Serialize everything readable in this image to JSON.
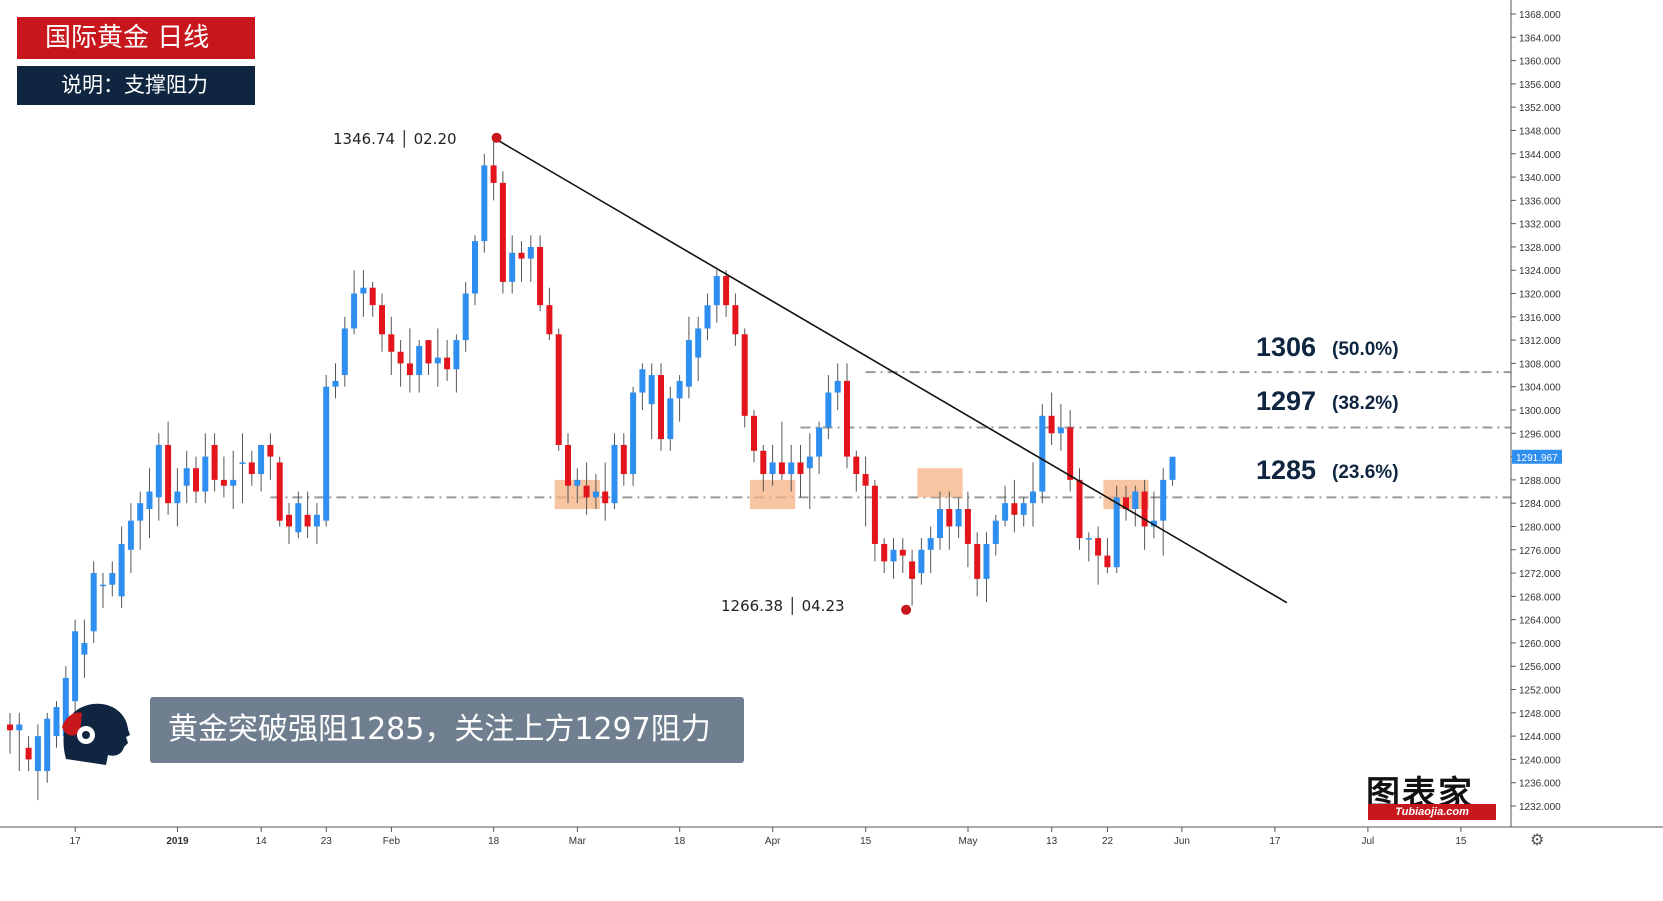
{
  "header": {
    "title": "国际黄金  日线",
    "subtitle": "说明：支撑阻力"
  },
  "banner": {
    "text": "黄金突破强阻1285，关注上方1297阻力"
  },
  "logo": {
    "cn": "图表家",
    "en": "Tubiaojia.com"
  },
  "annotations": {
    "high": "1346.74 │ 02.20",
    "low": "1266.38 │ 04.23"
  },
  "fib_levels": [
    {
      "level": "1306",
      "pct": "(50.0%)",
      "value": 1306.5
    },
    {
      "level": "1297",
      "pct": "(38.2%)",
      "value": 1297.0
    },
    {
      "level": "1285",
      "pct": "(23.6%)",
      "value": 1285.0
    }
  ],
  "current_price": "1291.967",
  "colors": {
    "up": "#2f8ff0",
    "down": "#e3141c",
    "brand_red": "#c8161d",
    "navy": "#0f2540",
    "zone": "#f4b183"
  },
  "chart_data": {
    "type": "candlestick",
    "title": "国际黄金  日线",
    "subtitle": "说明：支撑阻力",
    "ylim": [
      1228,
      1370
    ],
    "y_ticks": [
      "1232.000",
      "1236.000",
      "1240.000",
      "1244.000",
      "1248.000",
      "1252.000",
      "1256.000",
      "1260.000",
      "1264.000",
      "1268.000",
      "1272.000",
      "1276.000",
      "1280.000",
      "1284.000",
      "1288.000",
      "1292.000",
      "1296.000",
      "1300.000",
      "1304.000",
      "1308.000",
      "1312.000",
      "1316.000",
      "1320.000",
      "1324.000",
      "1328.000",
      "1332.000",
      "1336.000",
      "1340.000",
      "1344.000",
      "1348.000",
      "1352.000",
      "1356.000",
      "1360.000",
      "1364.000",
      "1368.000"
    ],
    "x_ticks": [
      {
        "label": "17",
        "bar": 4
      },
      {
        "label": "2019",
        "bar": 15
      },
      {
        "label": "14",
        "bar": 24
      },
      {
        "label": "23",
        "bar": 31
      },
      {
        "label": "Feb",
        "bar": 38
      },
      {
        "label": "18",
        "bar": 49
      },
      {
        "label": "Mar",
        "bar": 58
      },
      {
        "label": "18",
        "bar": 69
      },
      {
        "label": "Apr",
        "bar": 79
      },
      {
        "label": "15",
        "bar": 89
      },
      {
        "label": "May",
        "bar": 100
      },
      {
        "label": "13",
        "bar": 109
      },
      {
        "label": "22",
        "bar": 115
      },
      {
        "label": "Jun",
        "bar": 123
      },
      {
        "label": "17",
        "bar": 133
      },
      {
        "label": "Jul",
        "bar": 143
      },
      {
        "label": "15",
        "bar": 153
      }
    ],
    "candles": [
      [
        1246,
        1248,
        1241,
        1245
      ],
      [
        1245,
        1248,
        1238,
        1246
      ],
      [
        1242,
        1244,
        1238,
        1240
      ],
      [
        1238,
        1246,
        1233,
        1244
      ],
      [
        1238,
        1248,
        1236,
        1247
      ],
      [
        1244,
        1250,
        1242,
        1249
      ],
      [
        1244,
        1256,
        1242,
        1254
      ],
      [
        1250,
        1264,
        1248,
        1262
      ],
      [
        1258,
        1264,
        1254,
        1260
      ],
      [
        1262,
        1274,
        1260,
        1272
      ],
      [
        1270,
        1272,
        1266,
        1270
      ],
      [
        1270,
        1274,
        1268,
        1272
      ],
      [
        1268,
        1280,
        1266,
        1277
      ],
      [
        1276,
        1284,
        1272,
        1281
      ],
      [
        1281,
        1286,
        1276,
        1284
      ],
      [
        1283,
        1290,
        1278,
        1286
      ],
      [
        1285,
        1296,
        1281,
        1294
      ],
      [
        1294,
        1298,
        1282,
        1284
      ],
      [
        1284,
        1290,
        1280,
        1286
      ],
      [
        1287,
        1293,
        1284,
        1290
      ],
      [
        1290,
        1292,
        1284,
        1286
      ],
      [
        1286,
        1296,
        1284,
        1292
      ],
      [
        1294,
        1296,
        1286,
        1288
      ],
      [
        1288,
        1292,
        1285,
        1287
      ],
      [
        1287,
        1293,
        1283,
        1288
      ],
      [
        1291,
        1296,
        1284,
        1291
      ],
      [
        1291,
        1293,
        1287,
        1289
      ],
      [
        1289,
        1294,
        1286,
        1294
      ],
      [
        1294,
        1296,
        1288,
        1292
      ],
      [
        1291,
        1292,
        1280,
        1281
      ],
      [
        1282,
        1284,
        1277,
        1280
      ],
      [
        1279,
        1286,
        1278,
        1284
      ],
      [
        1282,
        1286,
        1278,
        1280
      ],
      [
        1280,
        1284,
        1277,
        1282
      ],
      [
        1281,
        1306,
        1280,
        1304
      ],
      [
        1304,
        1308,
        1302,
        1305
      ],
      [
        1306,
        1316,
        1304,
        1314
      ],
      [
        1314,
        1324,
        1313,
        1320
      ],
      [
        1320,
        1324,
        1316,
        1321
      ],
      [
        1321,
        1322,
        1316,
        1318
      ],
      [
        1318,
        1320,
        1310,
        1313
      ],
      [
        1313,
        1316,
        1306,
        1310
      ],
      [
        1310,
        1312,
        1304,
        1308
      ],
      [
        1308,
        1314,
        1303,
        1306
      ],
      [
        1306,
        1312,
        1303,
        1311
      ],
      [
        1312,
        1312,
        1306,
        1308
      ],
      [
        1308,
        1314,
        1304,
        1309
      ],
      [
        1309,
        1312,
        1305,
        1307
      ],
      [
        1307,
        1313,
        1303,
        1312
      ],
      [
        1312,
        1322,
        1310,
        1320
      ],
      [
        1320,
        1330,
        1318,
        1329
      ],
      [
        1329,
        1344,
        1327,
        1342
      ],
      [
        1342,
        1346.7,
        1336,
        1339
      ],
      [
        1339,
        1341,
        1320,
        1322
      ],
      [
        1322,
        1330,
        1320,
        1327
      ],
      [
        1327,
        1329,
        1322,
        1326
      ],
      [
        1326,
        1330,
        1322,
        1328
      ],
      [
        1328,
        1330,
        1317,
        1318
      ],
      [
        1318,
        1321,
        1312,
        1313
      ],
      [
        1313,
        1314,
        1293,
        1294
      ],
      [
        1294,
        1296,
        1284,
        1287
      ],
      [
        1287,
        1290,
        1284,
        1288
      ],
      [
        1287,
        1291,
        1282,
        1285
      ],
      [
        1285,
        1289,
        1283,
        1286
      ],
      [
        1286,
        1291,
        1281,
        1284
      ],
      [
        1284,
        1296,
        1283,
        1294
      ],
      [
        1294,
        1296,
        1287,
        1289
      ],
      [
        1289,
        1304,
        1287,
        1303
      ],
      [
        1303,
        1308,
        1300,
        1307
      ],
      [
        1301,
        1308,
        1295,
        1306
      ],
      [
        1306,
        1308,
        1293,
        1295
      ],
      [
        1295,
        1304,
        1293,
        1302
      ],
      [
        1302,
        1306,
        1298,
        1305
      ],
      [
        1304,
        1316,
        1302,
        1312
      ],
      [
        1309,
        1316,
        1305,
        1314
      ],
      [
        1314,
        1320,
        1312,
        1318
      ],
      [
        1318,
        1324,
        1315,
        1323
      ],
      [
        1323,
        1324,
        1316,
        1318
      ],
      [
        1318,
        1320,
        1311,
        1313
      ],
      [
        1313,
        1314,
        1297,
        1299
      ],
      [
        1299,
        1300,
        1291,
        1293
      ],
      [
        1293,
        1294,
        1286,
        1289
      ],
      [
        1289,
        1294,
        1287,
        1291
      ],
      [
        1291,
        1298,
        1288,
        1289
      ],
      [
        1289,
        1294,
        1286,
        1291
      ],
      [
        1291,
        1294,
        1285,
        1289
      ],
      [
        1290,
        1296,
        1283,
        1292
      ],
      [
        1292,
        1298,
        1289,
        1297
      ],
      [
        1297,
        1306,
        1295,
        1303
      ],
      [
        1303,
        1308,
        1300,
        1305
      ],
      [
        1305,
        1308,
        1290,
        1292
      ],
      [
        1292,
        1293,
        1286,
        1289
      ],
      [
        1289,
        1292,
        1280,
        1287
      ],
      [
        1287,
        1288,
        1274,
        1277
      ],
      [
        1277,
        1278,
        1272,
        1274
      ],
      [
        1274,
        1278,
        1271,
        1276
      ],
      [
        1276,
        1278,
        1272,
        1275
      ],
      [
        1274,
        1276,
        1266.4,
        1271
      ],
      [
        1272,
        1278,
        1270,
        1276
      ],
      [
        1276,
        1280,
        1272,
        1278
      ],
      [
        1278,
        1286,
        1276,
        1283
      ],
      [
        1283,
        1286,
        1276,
        1280
      ],
      [
        1280,
        1285,
        1278,
        1283
      ],
      [
        1283,
        1286,
        1273,
        1277
      ],
      [
        1277,
        1279,
        1268,
        1271
      ],
      [
        1271,
        1279,
        1267,
        1277
      ],
      [
        1277,
        1282,
        1275,
        1281
      ],
      [
        1281,
        1287,
        1280,
        1284
      ],
      [
        1284,
        1288,
        1279,
        1282
      ],
      [
        1282,
        1285,
        1280,
        1284
      ],
      [
        1284,
        1291,
        1280,
        1286
      ],
      [
        1286,
        1301,
        1284,
        1299
      ],
      [
        1299,
        1303,
        1294,
        1296
      ],
      [
        1296,
        1301,
        1293,
        1297
      ],
      [
        1297,
        1300,
        1286,
        1288
      ],
      [
        1288,
        1290,
        1276,
        1278
      ],
      [
        1278,
        1279,
        1274,
        1278
      ],
      [
        1278,
        1280,
        1270,
        1275
      ],
      [
        1275,
        1278,
        1272,
        1273
      ],
      [
        1273,
        1287,
        1272,
        1285
      ],
      [
        1285,
        1287,
        1281,
        1283
      ],
      [
        1283,
        1287,
        1280,
        1286
      ],
      [
        1286,
        1288,
        1276,
        1280
      ],
      [
        1280,
        1286,
        1278,
        1281
      ],
      [
        1281,
        1290,
        1275,
        1288
      ],
      [
        1288,
        1292,
        1287,
        1291.97
      ]
    ],
    "trendline": {
      "from": {
        "bar": 52,
        "price": 1346.74
      },
      "to": {
        "bar": 133,
        "price": 1270.0
      }
    },
    "levels": [
      1306.5,
      1297.0,
      1285.0
    ],
    "support_zones": [
      {
        "bar_from": 59,
        "bar_to": 63,
        "y_from": 1283,
        "y_to": 1288
      },
      {
        "bar_from": 80,
        "bar_to": 84,
        "y_from": 1283,
        "y_to": 1288
      },
      {
        "bar_from": 98,
        "bar_to": 102,
        "y_from": 1285,
        "y_to": 1290
      },
      {
        "bar_from": 118,
        "bar_to": 122,
        "y_from": 1283,
        "y_to": 1288
      }
    ],
    "high_point": {
      "bar": 52,
      "price": 1346.74
    },
    "low_point": {
      "bar": 97,
      "price": 1266.38
    },
    "last_price": 1291.967
  }
}
